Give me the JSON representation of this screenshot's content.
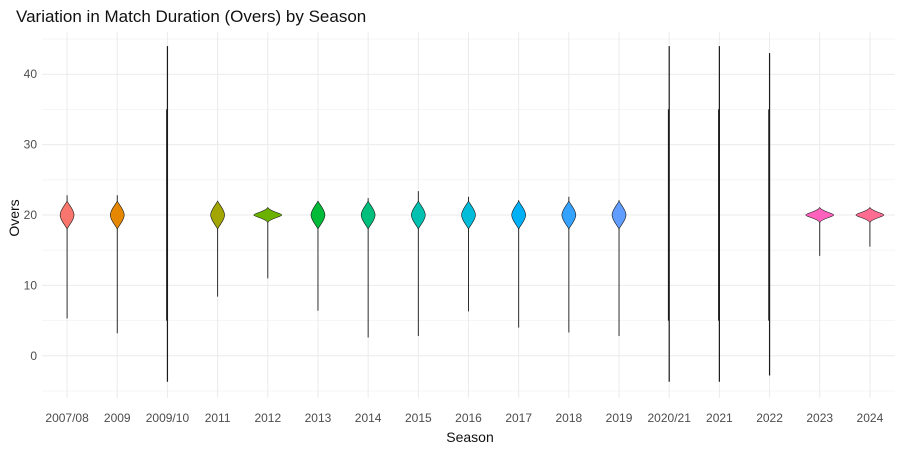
{
  "chart_data": {
    "type": "violin",
    "title": "Variation in Match Duration (Overs) by Season",
    "xlabel": "Season",
    "ylabel": "Overs",
    "ylim": [
      -6,
      46
    ],
    "yticks": [
      0,
      10,
      20,
      30,
      40
    ],
    "grid": true,
    "legend": "none",
    "categories": [
      "2007/08",
      "2009",
      "2009/10",
      "2011",
      "2012",
      "2013",
      "2014",
      "2015",
      "2016",
      "2017",
      "2018",
      "2019",
      "2020/21",
      "2021",
      "2022",
      "2023",
      "2024"
    ],
    "series": [
      {
        "category": "2007/08",
        "min": 5.3,
        "max": 22.8,
        "center": 20.0,
        "colored": true,
        "color": "#F8766D"
      },
      {
        "category": "2009",
        "min": 3.2,
        "max": 22.8,
        "center": 20.0,
        "colored": true,
        "color": "#E58700"
      },
      {
        "category": "2009/10",
        "min": -3.7,
        "max": 44.0,
        "center": 20.0,
        "colored": false,
        "color": "#C99800"
      },
      {
        "category": "2011",
        "min": 8.4,
        "max": 21.8,
        "center": 20.0,
        "colored": true,
        "color": "#A3A500"
      },
      {
        "category": "2012",
        "min": 11.0,
        "max": 21.0,
        "center": 20.0,
        "colored": true,
        "color": "#6BB100"
      },
      {
        "category": "2013",
        "min": 6.4,
        "max": 21.6,
        "center": 20.0,
        "colored": true,
        "color": "#00BA38"
      },
      {
        "category": "2014",
        "min": 2.6,
        "max": 22.4,
        "center": 20.0,
        "colored": true,
        "color": "#00BF7D"
      },
      {
        "category": "2015",
        "min": 2.8,
        "max": 23.4,
        "center": 20.0,
        "colored": true,
        "color": "#00C0AF"
      },
      {
        "category": "2016",
        "min": 6.3,
        "max": 22.6,
        "center": 20.0,
        "colored": true,
        "color": "#00BCD8"
      },
      {
        "category": "2017",
        "min": 4.0,
        "max": 22.1,
        "center": 20.0,
        "colored": true,
        "color": "#00B0F6"
      },
      {
        "category": "2018",
        "min": 3.3,
        "max": 22.6,
        "center": 20.0,
        "colored": true,
        "color": "#35A2FF"
      },
      {
        "category": "2019",
        "min": 2.8,
        "max": 22.1,
        "center": 20.0,
        "colored": true,
        "color": "#619CFF"
      },
      {
        "category": "2020/21",
        "min": -3.7,
        "max": 44.0,
        "center": 20.0,
        "colored": false,
        "color": "#9590FF"
      },
      {
        "category": "2021",
        "min": -3.7,
        "max": 44.0,
        "center": 20.0,
        "colored": false,
        "color": "#C77CFF"
      },
      {
        "category": "2022",
        "min": -2.8,
        "max": 43.0,
        "center": 20.0,
        "colored": false,
        "color": "#E76BF3"
      },
      {
        "category": "2023",
        "min": 14.2,
        "max": 20.8,
        "center": 20.0,
        "colored": true,
        "color": "#FF62BC"
      },
      {
        "category": "2024",
        "min": 15.5,
        "max": 20.4,
        "center": 20.0,
        "colored": true,
        "color": "#FF6C91"
      }
    ]
  }
}
